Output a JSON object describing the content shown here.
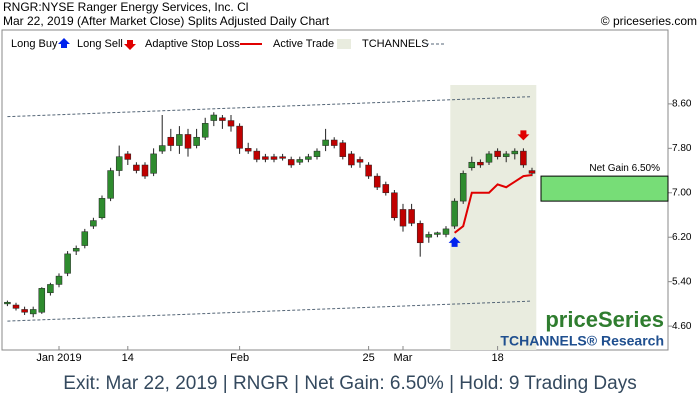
{
  "chart_data": {
    "type": "candlestick",
    "title": "RNGR:NYSE Ranger Energy Services, Inc. Cl",
    "subtitle": "Mar 22, 2019 (After Market Close)  Splits Adjusted Daily Chart",
    "source": "© priceseries.com",
    "legend": {
      "buy": "Long Buy",
      "sell": "Long Sell",
      "stop": "Adaptive Stop Loss",
      "active": "Active Trade",
      "channels": "TCHANNELS"
    },
    "categories": [
      null,
      null,
      null,
      null,
      null,
      null,
      "Jan 2019",
      null,
      null,
      null,
      null,
      null,
      null,
      null,
      "14",
      null,
      null,
      null,
      null,
      null,
      null,
      null,
      null,
      null,
      null,
      null,
      null,
      "Feb",
      null,
      null,
      null,
      null,
      null,
      null,
      null,
      null,
      null,
      null,
      null,
      null,
      null,
      null,
      "25",
      null,
      null,
      null,
      "Mar",
      null,
      null,
      null,
      null,
      null,
      null,
      null,
      null,
      null,
      null,
      "18",
      null,
      null,
      null,
      null
    ],
    "open": [
      5.0,
      4.98,
      4.9,
      4.82,
      4.85,
      5.2,
      5.35,
      5.55,
      5.95,
      6.05,
      6.4,
      6.55,
      6.9,
      7.4,
      7.7,
      7.5,
      7.5,
      7.35,
      7.75,
      8.0,
      7.85,
      8.05,
      7.85,
      8.0,
      8.3,
      8.35,
      8.3,
      8.2,
      7.8,
      7.75,
      7.65,
      7.65,
      7.65,
      7.6,
      7.55,
      7.6,
      7.65,
      7.85,
      7.95,
      7.9,
      7.7,
      7.6,
      7.5,
      7.3,
      7.15,
      7.0,
      6.7,
      6.7,
      6.45,
      6.2,
      6.25,
      6.25,
      6.4,
      6.85,
      7.45,
      7.55,
      7.55,
      7.75,
      7.65,
      7.7,
      7.75,
      7.4
    ],
    "high": [
      5.06,
      5.02,
      4.95,
      4.95,
      5.3,
      5.38,
      5.55,
      5.95,
      6.05,
      6.35,
      6.55,
      6.95,
      7.45,
      7.85,
      7.75,
      7.55,
      7.55,
      7.8,
      8.4,
      8.15,
      8.2,
      8.15,
      8.15,
      8.35,
      8.45,
      8.4,
      8.4,
      8.25,
      7.9,
      7.8,
      7.7,
      7.7,
      7.7,
      7.65,
      7.65,
      7.7,
      7.8,
      8.15,
      8.0,
      7.95,
      7.75,
      7.65,
      7.55,
      7.35,
      7.2,
      7.05,
      6.8,
      6.8,
      6.5,
      6.3,
      6.3,
      6.4,
      6.9,
      7.4,
      7.65,
      7.6,
      7.75,
      7.8,
      7.75,
      7.8,
      7.8,
      7.45
    ],
    "low": [
      4.96,
      4.88,
      4.8,
      4.76,
      4.82,
      5.15,
      5.3,
      5.5,
      5.88,
      6.0,
      6.35,
      6.52,
      6.85,
      7.3,
      7.5,
      7.35,
      7.25,
      7.3,
      7.7,
      7.75,
      7.7,
      7.65,
      7.8,
      7.95,
      8.2,
      8.15,
      8.1,
      7.7,
      7.7,
      7.55,
      7.55,
      7.55,
      7.58,
      7.45,
      7.5,
      7.55,
      7.6,
      7.75,
      7.8,
      7.6,
      7.45,
      7.45,
      7.25,
      7.05,
      6.95,
      6.5,
      6.3,
      6.4,
      5.85,
      6.1,
      6.2,
      6.2,
      6.35,
      6.8,
      7.4,
      7.45,
      7.5,
      7.6,
      7.55,
      7.6,
      7.45,
      7.3
    ],
    "close": [
      5.03,
      4.92,
      4.85,
      4.9,
      5.28,
      5.35,
      5.5,
      5.9,
      6.0,
      6.3,
      6.5,
      6.9,
      7.4,
      7.65,
      7.6,
      7.4,
      7.3,
      7.7,
      7.85,
      7.85,
      8.05,
      7.8,
      8.0,
      8.25,
      8.4,
      8.3,
      8.2,
      7.8,
      7.75,
      7.6,
      7.6,
      7.6,
      7.62,
      7.5,
      7.6,
      7.65,
      7.75,
      7.95,
      7.85,
      7.65,
      7.5,
      7.55,
      7.3,
      7.1,
      7.0,
      6.55,
      6.4,
      6.45,
      6.1,
      6.25,
      6.28,
      6.35,
      6.85,
      7.35,
      7.55,
      7.5,
      7.7,
      7.65,
      7.7,
      7.75,
      7.5,
      7.35
    ],
    "up_color": "#2e8b2e",
    "down_color": "#c00000",
    "stop_loss": {
      "color": "#e00000",
      "values": [
        null,
        null,
        null,
        null,
        null,
        null,
        null,
        null,
        null,
        null,
        null,
        null,
        null,
        null,
        null,
        null,
        null,
        null,
        null,
        null,
        null,
        null,
        null,
        null,
        null,
        null,
        null,
        null,
        null,
        null,
        null,
        null,
        null,
        null,
        null,
        null,
        null,
        null,
        null,
        null,
        null,
        null,
        null,
        null,
        null,
        null,
        null,
        null,
        null,
        null,
        null,
        null,
        6.28,
        6.4,
        7.0,
        7.0,
        7.0,
        7.15,
        7.1,
        7.2,
        7.3,
        7.32
      ]
    },
    "channels": {
      "color": "#556677",
      "upper": [
        8.37,
        8.73
      ],
      "lower": [
        4.69,
        5.05
      ]
    },
    "trade": {
      "entry_price": 6.85,
      "exit_price": 7.3,
      "label": "Net Gain 6.50%",
      "color": "#77dd77"
    },
    "ylim": [
      4.17,
      9.93
    ],
    "yticks": [
      {
        "value": 4.6,
        "label": "4.60"
      },
      {
        "value": 5.4,
        "label": "5.40"
      },
      {
        "value": 6.2,
        "label": "6.20"
      },
      {
        "value": 7.0,
        "label": "7.00"
      },
      {
        "value": 7.8,
        "label": "7.80"
      },
      {
        "value": 8.6,
        "label": "8.60"
      }
    ],
    "watermark": {
      "brand": "priceSeries",
      "research": "TCHANNELS® Research"
    },
    "footer": "Exit: Mar 22, 2019 | RNGR | Net Gain: 6.50% | Hold: 9 Trading Days"
  }
}
